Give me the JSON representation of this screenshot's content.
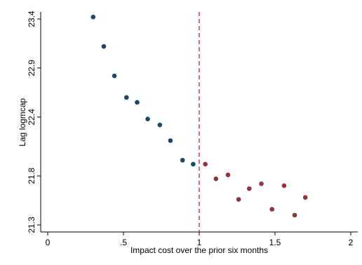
{
  "chart_data": {
    "type": "scatter",
    "title": "",
    "xlabel": "Impact cost over the prior six months",
    "ylabel": "Lag logmcap",
    "xlim": [
      0,
      2
    ],
    "ylim": [
      21.3,
      23.4
    ],
    "x_ticks": [
      {
        "value": 0,
        "label": "0"
      },
      {
        "value": 0.5,
        "label": ".5"
      },
      {
        "value": 1,
        "label": "1"
      },
      {
        "value": 1.5,
        "label": "1.5"
      },
      {
        "value": 2,
        "label": "2"
      }
    ],
    "y_ticks": [
      {
        "value": 21.3,
        "label": "21.3"
      },
      {
        "value": 21.8,
        "label": "21.8"
      },
      {
        "value": 22.4,
        "label": "22.4"
      },
      {
        "value": 22.9,
        "label": "22.9"
      },
      {
        "value": 23.4,
        "label": "23.4"
      }
    ],
    "vline": {
      "x": 1,
      "color": "#d6336c",
      "style": "dashed"
    },
    "grid": false,
    "series": [
      {
        "color": "#1a476f",
        "points": [
          {
            "x": 0.3,
            "y": 23.42
          },
          {
            "x": 0.37,
            "y": 23.12
          },
          {
            "x": 0.44,
            "y": 22.82
          },
          {
            "x": 0.52,
            "y": 22.6
          },
          {
            "x": 0.59,
            "y": 22.55
          },
          {
            "x": 0.66,
            "y": 22.38
          },
          {
            "x": 0.74,
            "y": 22.32
          },
          {
            "x": 0.81,
            "y": 22.16
          },
          {
            "x": 0.89,
            "y": 21.96
          },
          {
            "x": 0.96,
            "y": 21.92
          }
        ]
      },
      {
        "color": "#90353b",
        "points": [
          {
            "x": 1.04,
            "y": 21.92
          },
          {
            "x": 1.11,
            "y": 21.77
          },
          {
            "x": 1.19,
            "y": 21.81
          },
          {
            "x": 1.26,
            "y": 21.56
          },
          {
            "x": 1.33,
            "y": 21.67
          },
          {
            "x": 1.41,
            "y": 21.72
          },
          {
            "x": 1.48,
            "y": 21.46
          },
          {
            "x": 1.56,
            "y": 21.7
          },
          {
            "x": 1.63,
            "y": 21.4
          },
          {
            "x": 1.7,
            "y": 21.58
          }
        ]
      }
    ]
  }
}
